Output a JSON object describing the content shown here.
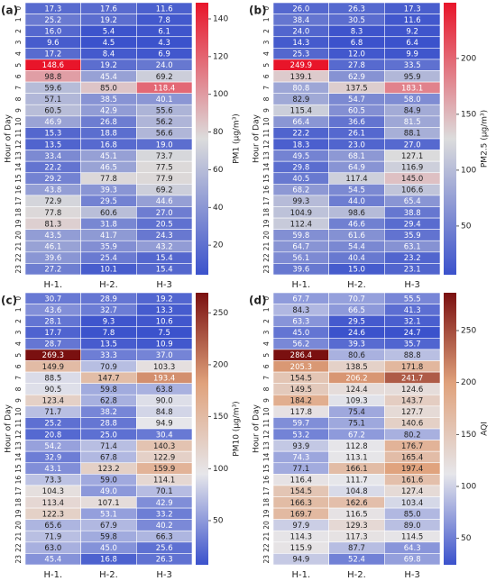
{
  "chart_data": [
    {
      "type": "heatmap",
      "panel_label": "(a)",
      "ylabel": "Hour of Day",
      "colorbar_label": "PM1 (μg/m³)",
      "x_categories": [
        "H-1.",
        "H-2.",
        "H-3"
      ],
      "y_categories": [
        "0",
        "1",
        "2",
        "3",
        "4",
        "5",
        "6",
        "7",
        "8",
        "9",
        "10",
        "11",
        "12",
        "13",
        "14",
        "15",
        "16",
        "17",
        "18",
        "19",
        "20",
        "21",
        "22",
        "23"
      ],
      "values": [
        [
          17.3,
          17.6,
          11.6
        ],
        [
          25.2,
          19.2,
          7.8
        ],
        [
          16.0,
          5.4,
          6.1
        ],
        [
          9.6,
          4.5,
          4.3
        ],
        [
          17.2,
          8.4,
          6.9
        ],
        [
          148.6,
          19.2,
          24.0
        ],
        [
          98.8,
          45.4,
          69.2
        ],
        [
          59.6,
          85.0,
          118.4
        ],
        [
          57.1,
          38.5,
          40.1
        ],
        [
          60.5,
          42.9,
          55.6
        ],
        [
          46.9,
          26.8,
          56.2
        ],
        [
          15.3,
          18.8,
          56.6
        ],
        [
          13.5,
          16.8,
          19.0
        ],
        [
          33.4,
          45.1,
          73.7
        ],
        [
          22.2,
          46.5,
          77.5
        ],
        [
          29.2,
          77.8,
          77.9
        ],
        [
          43.8,
          39.3,
          69.2
        ],
        [
          72.9,
          29.5,
          44.6
        ],
        [
          77.8,
          60.6,
          27.0
        ],
        [
          81.3,
          31.8,
          20.5
        ],
        [
          43.5,
          41.7,
          24.3
        ],
        [
          46.1,
          35.9,
          43.2
        ],
        [
          39.6,
          25.4,
          15.4
        ],
        [
          27.2,
          10.1,
          15.4
        ]
      ],
      "clim": [
        4.3,
        148.6
      ],
      "cticks": [
        20,
        40,
        60,
        80,
        100,
        120,
        140
      ],
      "colormap": [
        "#3b52cc",
        "#dcdcdc",
        "#e8152a"
      ]
    },
    {
      "type": "heatmap",
      "panel_label": "(b)",
      "ylabel": "Hour of Day",
      "colorbar_label": "PM2.5 (μg/m³)",
      "x_categories": [
        "H-1.",
        "H-2.",
        "H-3"
      ],
      "y_categories": [
        "0",
        "1",
        "2",
        "3",
        "4",
        "5",
        "6",
        "7",
        "8",
        "9",
        "10",
        "11",
        "12",
        "13",
        "14",
        "15",
        "16",
        "17",
        "18",
        "19",
        "20",
        "21",
        "22",
        "23"
      ],
      "values": [
        [
          26.0,
          26.3,
          17.3
        ],
        [
          38.4,
          30.5,
          11.6
        ],
        [
          24.0,
          8.3,
          9.2
        ],
        [
          14.3,
          6.8,
          6.4
        ],
        [
          25.3,
          12.0,
          9.9
        ],
        [
          249.9,
          27.8,
          33.5
        ],
        [
          139.1,
          62.9,
          95.9
        ],
        [
          80.8,
          137.5,
          183.1
        ],
        [
          82.9,
          54.7,
          58.0
        ],
        [
          115.4,
          60.5,
          84.9
        ],
        [
          66.4,
          36.6,
          81.5
        ],
        [
          22.2,
          26.1,
          88.1
        ],
        [
          18.3,
          23.0,
          27.0
        ],
        [
          49.5,
          68.1,
          127.1
        ],
        [
          29.8,
          64.9,
          116.9
        ],
        [
          40.5,
          117.4,
          145.0
        ],
        [
          68.2,
          54.5,
          106.6
        ],
        [
          99.3,
          44.0,
          65.4
        ],
        [
          104.9,
          98.6,
          38.8
        ],
        [
          112.4,
          46.6,
          29.4
        ],
        [
          59.8,
          61.6,
          35.9
        ],
        [
          64.7,
          54.4,
          63.1
        ],
        [
          56.1,
          40.4,
          23.2
        ],
        [
          39.6,
          15.0,
          23.1
        ]
      ],
      "clim": [
        6.4,
        249.9
      ],
      "cticks": [
        50,
        100,
        150,
        200
      ],
      "colormap": [
        "#3b52cc",
        "#dcdcdc",
        "#e8152a"
      ]
    },
    {
      "type": "heatmap",
      "panel_label": "(c)",
      "ylabel": "Hour of Day",
      "colorbar_label": "PM10 (μg/m³)",
      "x_categories": [
        "H-1.",
        "H-2.",
        "H-3"
      ],
      "y_categories": [
        "0",
        "1",
        "2",
        "3",
        "4",
        "5",
        "6",
        "7",
        "8",
        "9",
        "10",
        "11",
        "12",
        "13",
        "14",
        "15",
        "16",
        "17",
        "18",
        "19",
        "20",
        "21",
        "22",
        "23"
      ],
      "values": [
        [
          30.7,
          28.9,
          19.2
        ],
        [
          43.6,
          32.7,
          13.3
        ],
        [
          28.1,
          9.3,
          10.6
        ],
        [
          17.7,
          7.8,
          7.5
        ],
        [
          28.7,
          13.5,
          10.9
        ],
        [
          269.3,
          33.3,
          37.0
        ],
        [
          149.9,
          70.9,
          103.3
        ],
        [
          88.5,
          147.7,
          193.4
        ],
        [
          90.5,
          59.8,
          63.8
        ],
        [
          123.4,
          62.8,
          90.0
        ],
        [
          71.7,
          38.2,
          84.8
        ],
        [
          25.2,
          28.8,
          94.9
        ],
        [
          20.8,
          25.0,
          30.4
        ],
        [
          54.2,
          71.4,
          140.3
        ],
        [
          32.9,
          67.8,
          122.9
        ],
        [
          43.1,
          123.2,
          159.9
        ],
        [
          73.3,
          59.0,
          114.1
        ],
        [
          104.3,
          49.0,
          70.1
        ],
        [
          113.4,
          107.1,
          42.9
        ],
        [
          122.3,
          53.1,
          33.2
        ],
        [
          65.6,
          67.9,
          40.2
        ],
        [
          71.9,
          59.8,
          66.3
        ],
        [
          63.0,
          45.0,
          25.6
        ],
        [
          45.4,
          16.8,
          26.3
        ]
      ],
      "clim": [
        7.5,
        269.3
      ],
      "cticks": [
        50,
        100,
        150,
        200,
        250
      ],
      "colormap": [
        "#3b52cc",
        "#e6e6ea",
        "#e0a27c",
        "#7a1010"
      ]
    },
    {
      "type": "heatmap",
      "panel_label": "(d)",
      "ylabel": "Hour of Day",
      "colorbar_label": "AQI",
      "x_categories": [
        "H-1.",
        "H-2.",
        "H-3"
      ],
      "y_categories": [
        "0",
        "1",
        "2",
        "3",
        "4",
        "5",
        "6",
        "7",
        "8",
        "9",
        "10",
        "11",
        "12",
        "13",
        "14",
        "15",
        "16",
        "17",
        "18",
        "19",
        "20",
        "21",
        "22",
        "23"
      ],
      "values": [
        [
          67.7,
          70.7,
          55.5
        ],
        [
          84.3,
          66.5,
          41.3
        ],
        [
          63.3,
          29.5,
          32.1
        ],
        [
          45.0,
          24.6,
          24.7
        ],
        [
          56.2,
          39.3,
          35.7
        ],
        [
          286.4,
          80.6,
          88.8
        ],
        [
          205.3,
          138.5,
          171.8
        ],
        [
          154.5,
          206.2,
          241.7
        ],
        [
          149.5,
          124.4,
          124.6
        ],
        [
          184.2,
          109.3,
          143.7
        ],
        [
          117.8,
          75.4,
          127.7
        ],
        [
          59.7,
          75.1,
          140.6
        ],
        [
          53.2,
          67.2,
          80.2
        ],
        [
          93.9,
          112.8,
          176.7
        ],
        [
          74.3,
          113.1,
          165.4
        ],
        [
          77.1,
          166.1,
          197.4
        ],
        [
          116.4,
          111.7,
          161.6
        ],
        [
          154.5,
          104.8,
          127.4
        ],
        [
          166.3,
          162.6,
          103.4
        ],
        [
          169.7,
          116.5,
          85.0
        ],
        [
          97.9,
          129.3,
          89.0
        ],
        [
          114.3,
          117.3,
          114.5
        ],
        [
          115.9,
          87.7,
          64.3
        ],
        [
          94.9,
          52.4,
          69.8
        ]
      ],
      "clim": [
        24.6,
        286.4
      ],
      "cticks": [
        50,
        100,
        150,
        200,
        250
      ],
      "colormap": [
        "#3b52cc",
        "#e6e6ea",
        "#e0a27c",
        "#7a1010"
      ]
    }
  ]
}
